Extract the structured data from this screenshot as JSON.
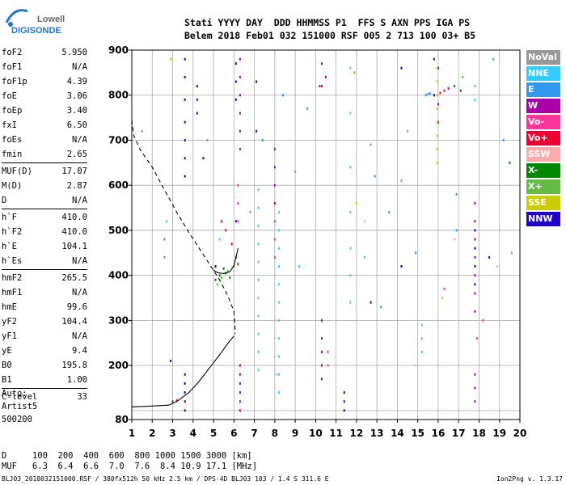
{
  "logo": {
    "line1": "Lowell",
    "line2": "DIGISONDE"
  },
  "header": {
    "line1": "Stati YYYY DAY  DDD HHMMSS P1  FFS S AXN PPS IGA PS",
    "line2": "Belem 2018 Feb01 032 151000 RSF 005 2 713 100 03+ B5"
  },
  "params": [
    {
      "k": "foF2",
      "v": "5.950"
    },
    {
      "k": "foF1",
      "v": "N/A"
    },
    {
      "k": "foF1p",
      "v": "4.39"
    },
    {
      "k": "foE",
      "v": "3.06"
    },
    {
      "k": "foEp",
      "v": "3.40"
    },
    {
      "k": "fxI",
      "v": "6.50"
    },
    {
      "k": "foEs",
      "v": "N/A"
    },
    {
      "k": "fmin",
      "v": "2.65"
    },
    {
      "sep": true
    },
    {
      "k": "MUF(D)",
      "v": "17.07"
    },
    {
      "k": "M(D)",
      "v": "2.87"
    },
    {
      "k": "D",
      "v": "N/A"
    },
    {
      "sep": true
    },
    {
      "k": "h`F",
      "v": "410.0"
    },
    {
      "k": "h`F2",
      "v": "410.0"
    },
    {
      "k": "h`E",
      "v": "104.1"
    },
    {
      "k": "h`Es",
      "v": "N/A"
    },
    {
      "sep": true
    },
    {
      "k": "hmF2",
      "v": "265.5"
    },
    {
      "k": "hmF1",
      "v": "N/A"
    },
    {
      "k": "hmE",
      "v": "99.6"
    },
    {
      "k": "yF2",
      "v": "104.4"
    },
    {
      "k": "yF1",
      "v": "N/A"
    },
    {
      "k": "yE",
      "v": "9.4"
    },
    {
      "k": "B0",
      "v": "195.8"
    },
    {
      "k": "B1",
      "v": "1.00"
    },
    {
      "sep": true
    },
    {
      "k": "C-level",
      "v": "33"
    }
  ],
  "auto": [
    "Auto:",
    "Artist5",
    "500200"
  ],
  "legend": [
    {
      "label": "NoVal",
      "color": "#999999"
    },
    {
      "label": "NNE",
      "color": "#33ccff"
    },
    {
      "label": "E",
      "color": "#3399ee"
    },
    {
      "label": "W",
      "color": "#aa00aa"
    },
    {
      "label": "Vo-",
      "color": "#ff3399"
    },
    {
      "label": "Vo+",
      "color": "#ee0033"
    },
    {
      "label": "SSW",
      "color": "#ffaaaa"
    },
    {
      "label": "X-",
      "color": "#008800"
    },
    {
      "label": "X+",
      "color": "#66bb44"
    },
    {
      "label": "SSE",
      "color": "#cccc00"
    },
    {
      "label": "NNW",
      "color": "#2200cc"
    }
  ],
  "dmuf": {
    "line1": "D     100  200  400  600  800 1000 1500 3000 [km]",
    "line2": "MUF   6.3  6.4  6.6  7.0  7.6  8.4 10.9 17.1 [MHz]"
  },
  "footer": "BLJ03_2018032151000.RSF / 380fx512h 50 kHz 2.5 km / DPS-4D BLJ03 103 / 1.4 S 311.6 E",
  "version": "Ion2Png v. 1.3.17",
  "chart_data": {
    "type": "scatter",
    "xlim": [
      1,
      20
    ],
    "ylim": [
      80,
      900
    ],
    "xticks": [
      1,
      2,
      3,
      4,
      5,
      6,
      7,
      8,
      9,
      10,
      11,
      12,
      13,
      14,
      15,
      16,
      17,
      18,
      19,
      20
    ],
    "yticks": [
      80,
      100,
      200,
      300,
      400,
      500,
      600,
      700,
      800,
      900
    ],
    "ytick_labels": [
      "80",
      "200",
      "300",
      "400",
      "500",
      "600",
      "700",
      "800",
      "900"
    ],
    "ytick_label_values": [
      80,
      200,
      300,
      400,
      500,
      600,
      700,
      800,
      900
    ],
    "grid": true,
    "series": [
      {
        "color": "#2200cc",
        "points": [
          [
            3.6,
            880
          ],
          [
            3.6,
            840
          ],
          [
            3.6,
            790
          ],
          [
            3.6,
            740
          ],
          [
            3.6,
            700
          ],
          [
            3.6,
            660
          ],
          [
            3.6,
            620
          ],
          [
            3.6,
            180
          ],
          [
            3.6,
            160
          ],
          [
            3.6,
            140
          ],
          [
            3.6,
            120
          ],
          [
            3.6,
            100
          ],
          [
            4.2,
            820
          ],
          [
            4.2,
            790
          ],
          [
            4.2,
            760
          ],
          [
            6.1,
            870
          ],
          [
            6.1,
            830
          ],
          [
            6.1,
            790
          ],
          [
            6.1,
            520
          ],
          [
            7.1,
            830
          ],
          [
            7.1,
            720
          ],
          [
            11.4,
            140
          ],
          [
            11.4,
            120
          ],
          [
            11.4,
            100
          ],
          [
            14.2,
            860
          ],
          [
            14.2,
            420
          ],
          [
            15.8,
            880
          ],
          [
            15.8,
            800
          ],
          [
            17.8,
            500
          ],
          [
            17.8,
            460
          ],
          [
            17.8,
            420
          ],
          [
            17.8,
            380
          ],
          [
            18.5,
            440
          ],
          [
            2.9,
            210
          ],
          [
            4.5,
            660
          ],
          [
            5.1,
            420
          ],
          [
            12.7,
            340
          ]
        ]
      },
      {
        "color": "#aa00aa",
        "points": [
          [
            6.3,
            880
          ],
          [
            6.3,
            840
          ],
          [
            6.3,
            800
          ],
          [
            6.3,
            760
          ],
          [
            6.3,
            720
          ],
          [
            6.3,
            680
          ],
          [
            6.3,
            200
          ],
          [
            6.3,
            180
          ],
          [
            6.3,
            160
          ],
          [
            6.3,
            140
          ],
          [
            6.3,
            120
          ],
          [
            6.3,
            100
          ],
          [
            8.0,
            680
          ],
          [
            8.0,
            640
          ],
          [
            8.0,
            600
          ],
          [
            8.0,
            560
          ],
          [
            10.3,
            870
          ],
          [
            10.3,
            820
          ],
          [
            10.3,
            300
          ],
          [
            10.3,
            260
          ],
          [
            10.3,
            230
          ],
          [
            10.3,
            200
          ],
          [
            10.3,
            170
          ],
          [
            16.0,
            860
          ],
          [
            16.0,
            780
          ],
          [
            16.0,
            740
          ],
          [
            17.8,
            560
          ],
          [
            17.8,
            520
          ],
          [
            17.8,
            480
          ],
          [
            17.8,
            440
          ],
          [
            17.8,
            400
          ],
          [
            17.8,
            360
          ],
          [
            17.8,
            320
          ],
          [
            17.8,
            180
          ],
          [
            17.8,
            150
          ],
          [
            17.8,
            120
          ]
        ]
      },
      {
        "color": "#33ccff",
        "points": [
          [
            7.2,
            590
          ],
          [
            7.2,
            550
          ],
          [
            7.2,
            510
          ],
          [
            7.2,
            470
          ],
          [
            7.2,
            430
          ],
          [
            7.2,
            390
          ],
          [
            7.2,
            350
          ],
          [
            7.2,
            310
          ],
          [
            7.2,
            270
          ],
          [
            7.2,
            230
          ],
          [
            7.2,
            190
          ],
          [
            8.2,
            540
          ],
          [
            8.2,
            500
          ],
          [
            8.2,
            460
          ],
          [
            8.2,
            420
          ],
          [
            8.2,
            380
          ],
          [
            8.2,
            340
          ],
          [
            8.2,
            300
          ],
          [
            8.2,
            260
          ],
          [
            8.2,
            220
          ],
          [
            8.2,
            180
          ],
          [
            8.2,
            140
          ],
          [
            11.7,
            860
          ],
          [
            11.7,
            760
          ],
          [
            11.7,
            640
          ],
          [
            11.7,
            540
          ],
          [
            11.7,
            460
          ],
          [
            11.7,
            400
          ],
          [
            11.7,
            340
          ],
          [
            15.2,
            290
          ],
          [
            15.2,
            260
          ],
          [
            15.2,
            230
          ],
          [
            17.8,
            820
          ],
          [
            17.8,
            790
          ],
          [
            2.7,
            520
          ],
          [
            5.3,
            480
          ],
          [
            9.2,
            420
          ],
          [
            12.4,
            440
          ]
        ]
      },
      {
        "color": "#3399ee",
        "points": [
          [
            2.6,
            480
          ],
          [
            2.6,
            440
          ],
          [
            7.4,
            700
          ],
          [
            8.4,
            800
          ],
          [
            9.6,
            770
          ],
          [
            12.9,
            620
          ],
          [
            13.6,
            540
          ],
          [
            14.9,
            450
          ],
          [
            15.4,
            800
          ],
          [
            15.5,
            802
          ],
          [
            15.6,
            804
          ],
          [
            16.9,
            580
          ],
          [
            16.9,
            500
          ],
          [
            18.7,
            880
          ],
          [
            19.2,
            700
          ],
          [
            13.2,
            330
          ]
        ]
      },
      {
        "color": "#ee0033",
        "points": [
          [
            5.4,
            520
          ],
          [
            5.6,
            500
          ],
          [
            5.9,
            470
          ],
          [
            6.1,
            440
          ],
          [
            6.2,
            425
          ],
          [
            16.1,
            805
          ],
          [
            16.3,
            810
          ],
          [
            16.5,
            815
          ],
          [
            10.2,
            820
          ],
          [
            10.5,
            840
          ],
          [
            3.0,
            120
          ],
          [
            3.2,
            122
          ]
        ]
      },
      {
        "color": "#ff3399",
        "points": [
          [
            6.2,
            600
          ],
          [
            6.2,
            560
          ],
          [
            6.2,
            520
          ],
          [
            8.0,
            520
          ],
          [
            8.0,
            480
          ],
          [
            8.0,
            440
          ],
          [
            10.6,
            230
          ],
          [
            10.6,
            200
          ],
          [
            16.3,
            370
          ],
          [
            17.9,
            260
          ],
          [
            18.2,
            300
          ]
        ]
      },
      {
        "color": "#ffaaaa",
        "points": [
          [
            8.0,
            300
          ],
          [
            8.0,
            260
          ],
          [
            8.0,
            220
          ],
          [
            8.1,
            180
          ],
          [
            14.9,
            200
          ],
          [
            16.8,
            480
          ],
          [
            18.9,
            420
          ],
          [
            12.4,
            520
          ]
        ]
      },
      {
        "color": "#008800",
        "points": [
          [
            5.1,
            390
          ],
          [
            5.3,
            400
          ],
          [
            5.5,
            415
          ],
          [
            5.6,
            405
          ],
          [
            5.8,
            395
          ],
          [
            16.8,
            820
          ],
          [
            17.1,
            810
          ],
          [
            19.5,
            650
          ]
        ]
      },
      {
        "color": "#66bb44",
        "points": [
          [
            5.2,
            380
          ],
          [
            5.4,
            395
          ],
          [
            5.7,
            410
          ],
          [
            6.0,
            420
          ],
          [
            6.8,
            540
          ],
          [
            11.9,
            850
          ],
          [
            14.2,
            610
          ],
          [
            17.2,
            840
          ]
        ]
      },
      {
        "color": "#cccc00",
        "points": [
          [
            15.95,
            860
          ],
          [
            15.95,
            830
          ],
          [
            15.95,
            800
          ],
          [
            15.95,
            770
          ],
          [
            15.95,
            740
          ],
          [
            15.95,
            710
          ],
          [
            15.95,
            680
          ],
          [
            15.95,
            650
          ],
          [
            2.9,
            880
          ],
          [
            12.0,
            560
          ],
          [
            16.2,
            350
          ]
        ]
      },
      {
        "color": "#999999",
        "points": [
          [
            1.5,
            720
          ],
          [
            4.7,
            700
          ],
          [
            9.0,
            630
          ],
          [
            12.7,
            690
          ],
          [
            14.5,
            720
          ],
          [
            19.6,
            450
          ]
        ]
      }
    ],
    "profile_lines": [
      {
        "style": "dashed",
        "points": [
          [
            1.0,
            745
          ],
          [
            1.1,
            710
          ],
          [
            1.4,
            680
          ],
          [
            2.0,
            640
          ],
          [
            2.6,
            590
          ],
          [
            3.2,
            540
          ],
          [
            3.8,
            495
          ],
          [
            4.3,
            460
          ],
          [
            4.8,
            425
          ],
          [
            5.3,
            390
          ],
          [
            5.7,
            355
          ],
          [
            6.0,
            320
          ],
          [
            6.05,
            290
          ],
          [
            6.05,
            270
          ]
        ]
      },
      {
        "style": "solid",
        "points": [
          [
            1.0,
            108
          ],
          [
            2.0,
            110
          ],
          [
            2.8,
            112
          ],
          [
            3.2,
            120
          ],
          [
            3.8,
            140
          ],
          [
            4.3,
            165
          ],
          [
            4.9,
            200
          ],
          [
            5.4,
            230
          ],
          [
            5.8,
            255
          ],
          [
            6.0,
            265
          ]
        ]
      },
      {
        "style": "solid",
        "points": [
          [
            5.0,
            412
          ],
          [
            5.2,
            406
          ],
          [
            5.5,
            404
          ],
          [
            5.8,
            408
          ],
          [
            6.0,
            422
          ],
          [
            6.1,
            440
          ],
          [
            6.2,
            460
          ]
        ]
      }
    ]
  }
}
